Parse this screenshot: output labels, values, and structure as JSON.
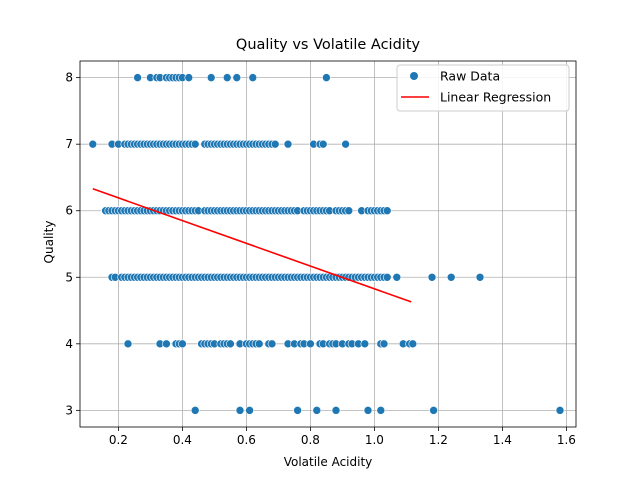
{
  "chart_data": {
    "type": "scatter",
    "title": "Quality vs Volatile Acidity",
    "xlabel": "Volatile Acidity",
    "ylabel": "Quality",
    "xlim": [
      0.08,
      1.63
    ],
    "ylim": [
      2.75,
      8.25
    ],
    "xticks": [
      0.2,
      0.4,
      0.6,
      0.8,
      1.0,
      1.2,
      1.4,
      1.6
    ],
    "xtick_labels": [
      "0.2",
      "0.4",
      "0.6",
      "0.8",
      "1.0",
      "1.2",
      "1.4",
      "1.6"
    ],
    "yticks": [
      3,
      4,
      5,
      6,
      7,
      8
    ],
    "ytick_labels": [
      "3",
      "4",
      "5",
      "6",
      "7",
      "8"
    ],
    "grid": true,
    "legend_position": "top-right",
    "colors": {
      "scatter": "#1f77b4",
      "regression": "#ff0000"
    },
    "series": [
      {
        "name": "Raw Data",
        "kind": "scatter",
        "points": [
          [
            0.26,
            8
          ],
          [
            0.3,
            8
          ],
          [
            0.32,
            8
          ],
          [
            0.33,
            8
          ],
          [
            0.35,
            8
          ],
          [
            0.36,
            8
          ],
          [
            0.37,
            8
          ],
          [
            0.38,
            8
          ],
          [
            0.39,
            8
          ],
          [
            0.4,
            8
          ],
          [
            0.42,
            8
          ],
          [
            0.49,
            8
          ],
          [
            0.54,
            8
          ],
          [
            0.57,
            8
          ],
          [
            0.62,
            8
          ],
          [
            0.85,
            8
          ],
          [
            0.12,
            7
          ],
          [
            0.18,
            7
          ],
          [
            0.2,
            7
          ],
          [
            0.22,
            7
          ],
          [
            0.23,
            7
          ],
          [
            0.24,
            7
          ],
          [
            0.25,
            7
          ],
          [
            0.26,
            7
          ],
          [
            0.27,
            7
          ],
          [
            0.28,
            7
          ],
          [
            0.29,
            7
          ],
          [
            0.3,
            7
          ],
          [
            0.31,
            7
          ],
          [
            0.32,
            7
          ],
          [
            0.33,
            7
          ],
          [
            0.34,
            7
          ],
          [
            0.35,
            7
          ],
          [
            0.36,
            7
          ],
          [
            0.37,
            7
          ],
          [
            0.38,
            7
          ],
          [
            0.39,
            7
          ],
          [
            0.4,
            7
          ],
          [
            0.41,
            7
          ],
          [
            0.42,
            7
          ],
          [
            0.43,
            7
          ],
          [
            0.44,
            7
          ],
          [
            0.47,
            7
          ],
          [
            0.48,
            7
          ],
          [
            0.49,
            7
          ],
          [
            0.5,
            7
          ],
          [
            0.51,
            7
          ],
          [
            0.52,
            7
          ],
          [
            0.53,
            7
          ],
          [
            0.54,
            7
          ],
          [
            0.55,
            7
          ],
          [
            0.56,
            7
          ],
          [
            0.57,
            7
          ],
          [
            0.58,
            7
          ],
          [
            0.59,
            7
          ],
          [
            0.6,
            7
          ],
          [
            0.61,
            7
          ],
          [
            0.62,
            7
          ],
          [
            0.63,
            7
          ],
          [
            0.64,
            7
          ],
          [
            0.65,
            7
          ],
          [
            0.66,
            7
          ],
          [
            0.67,
            7
          ],
          [
            0.68,
            7
          ],
          [
            0.69,
            7
          ],
          [
            0.73,
            7
          ],
          [
            0.81,
            7
          ],
          [
            0.83,
            7
          ],
          [
            0.84,
            7
          ],
          [
            0.91,
            7
          ],
          [
            0.16,
            6
          ],
          [
            0.17,
            6
          ],
          [
            0.18,
            6
          ],
          [
            0.19,
            6
          ],
          [
            0.2,
            6
          ],
          [
            0.21,
            6
          ],
          [
            0.22,
            6
          ],
          [
            0.23,
            6
          ],
          [
            0.24,
            6
          ],
          [
            0.25,
            6
          ],
          [
            0.26,
            6
          ],
          [
            0.27,
            6
          ],
          [
            0.28,
            6
          ],
          [
            0.29,
            6
          ],
          [
            0.3,
            6
          ],
          [
            0.31,
            6
          ],
          [
            0.32,
            6
          ],
          [
            0.33,
            6
          ],
          [
            0.34,
            6
          ],
          [
            0.35,
            6
          ],
          [
            0.36,
            6
          ],
          [
            0.37,
            6
          ],
          [
            0.38,
            6
          ],
          [
            0.39,
            6
          ],
          [
            0.4,
            6
          ],
          [
            0.41,
            6
          ],
          [
            0.42,
            6
          ],
          [
            0.43,
            6
          ],
          [
            0.44,
            6
          ],
          [
            0.45,
            6
          ],
          [
            0.47,
            6
          ],
          [
            0.48,
            6
          ],
          [
            0.49,
            6
          ],
          [
            0.5,
            6
          ],
          [
            0.51,
            6
          ],
          [
            0.52,
            6
          ],
          [
            0.53,
            6
          ],
          [
            0.54,
            6
          ],
          [
            0.55,
            6
          ],
          [
            0.56,
            6
          ],
          [
            0.57,
            6
          ],
          [
            0.58,
            6
          ],
          [
            0.59,
            6
          ],
          [
            0.6,
            6
          ],
          [
            0.61,
            6
          ],
          [
            0.62,
            6
          ],
          [
            0.63,
            6
          ],
          [
            0.64,
            6
          ],
          [
            0.65,
            6
          ],
          [
            0.66,
            6
          ],
          [
            0.67,
            6
          ],
          [
            0.68,
            6
          ],
          [
            0.69,
            6
          ],
          [
            0.7,
            6
          ],
          [
            0.71,
            6
          ],
          [
            0.72,
            6
          ],
          [
            0.73,
            6
          ],
          [
            0.74,
            6
          ],
          [
            0.75,
            6
          ],
          [
            0.76,
            6
          ],
          [
            0.78,
            6
          ],
          [
            0.79,
            6
          ],
          [
            0.8,
            6
          ],
          [
            0.81,
            6
          ],
          [
            0.82,
            6
          ],
          [
            0.83,
            6
          ],
          [
            0.84,
            6
          ],
          [
            0.85,
            6
          ],
          [
            0.86,
            6
          ],
          [
            0.88,
            6
          ],
          [
            0.89,
            6
          ],
          [
            0.9,
            6
          ],
          [
            0.91,
            6
          ],
          [
            0.92,
            6
          ],
          [
            0.96,
            6
          ],
          [
            0.98,
            6
          ],
          [
            0.99,
            6
          ],
          [
            1.0,
            6
          ],
          [
            1.01,
            6
          ],
          [
            1.02,
            6
          ],
          [
            1.03,
            6
          ],
          [
            1.04,
            6
          ],
          [
            0.18,
            5
          ],
          [
            0.19,
            5
          ],
          [
            0.21,
            5
          ],
          [
            0.22,
            5
          ],
          [
            0.23,
            5
          ],
          [
            0.24,
            5
          ],
          [
            0.25,
            5
          ],
          [
            0.26,
            5
          ],
          [
            0.27,
            5
          ],
          [
            0.28,
            5
          ],
          [
            0.29,
            5
          ],
          [
            0.3,
            5
          ],
          [
            0.31,
            5
          ],
          [
            0.32,
            5
          ],
          [
            0.33,
            5
          ],
          [
            0.34,
            5
          ],
          [
            0.35,
            5
          ],
          [
            0.36,
            5
          ],
          [
            0.37,
            5
          ],
          [
            0.38,
            5
          ],
          [
            0.39,
            5
          ],
          [
            0.4,
            5
          ],
          [
            0.41,
            5
          ],
          [
            0.42,
            5
          ],
          [
            0.43,
            5
          ],
          [
            0.44,
            5
          ],
          [
            0.45,
            5
          ],
          [
            0.46,
            5
          ],
          [
            0.47,
            5
          ],
          [
            0.48,
            5
          ],
          [
            0.49,
            5
          ],
          [
            0.5,
            5
          ],
          [
            0.51,
            5
          ],
          [
            0.52,
            5
          ],
          [
            0.53,
            5
          ],
          [
            0.54,
            5
          ],
          [
            0.55,
            5
          ],
          [
            0.56,
            5
          ],
          [
            0.57,
            5
          ],
          [
            0.58,
            5
          ],
          [
            0.59,
            5
          ],
          [
            0.6,
            5
          ],
          [
            0.61,
            5
          ],
          [
            0.62,
            5
          ],
          [
            0.63,
            5
          ],
          [
            0.64,
            5
          ],
          [
            0.65,
            5
          ],
          [
            0.66,
            5
          ],
          [
            0.67,
            5
          ],
          [
            0.68,
            5
          ],
          [
            0.69,
            5
          ],
          [
            0.7,
            5
          ],
          [
            0.71,
            5
          ],
          [
            0.72,
            5
          ],
          [
            0.73,
            5
          ],
          [
            0.74,
            5
          ],
          [
            0.75,
            5
          ],
          [
            0.76,
            5
          ],
          [
            0.77,
            5
          ],
          [
            0.78,
            5
          ],
          [
            0.79,
            5
          ],
          [
            0.8,
            5
          ],
          [
            0.81,
            5
          ],
          [
            0.82,
            5
          ],
          [
            0.83,
            5
          ],
          [
            0.84,
            5
          ],
          [
            0.85,
            5
          ],
          [
            0.86,
            5
          ],
          [
            0.87,
            5
          ],
          [
            0.88,
            5
          ],
          [
            0.89,
            5
          ],
          [
            0.9,
            5
          ],
          [
            0.91,
            5
          ],
          [
            0.92,
            5
          ],
          [
            0.93,
            5
          ],
          [
            0.94,
            5
          ],
          [
            0.95,
            5
          ],
          [
            0.96,
            5
          ],
          [
            0.97,
            5
          ],
          [
            0.98,
            5
          ],
          [
            0.99,
            5
          ],
          [
            1.0,
            5
          ],
          [
            1.01,
            5
          ],
          [
            1.02,
            5
          ],
          [
            1.03,
            5
          ],
          [
            1.04,
            5
          ],
          [
            1.07,
            5
          ],
          [
            1.18,
            5
          ],
          [
            1.24,
            5
          ],
          [
            1.33,
            5
          ],
          [
            0.23,
            4
          ],
          [
            0.33,
            4
          ],
          [
            0.35,
            4
          ],
          [
            0.38,
            4
          ],
          [
            0.39,
            4
          ],
          [
            0.4,
            4
          ],
          [
            0.46,
            4
          ],
          [
            0.47,
            4
          ],
          [
            0.48,
            4
          ],
          [
            0.49,
            4
          ],
          [
            0.5,
            4
          ],
          [
            0.52,
            4
          ],
          [
            0.53,
            4
          ],
          [
            0.54,
            4
          ],
          [
            0.55,
            4
          ],
          [
            0.58,
            4
          ],
          [
            0.6,
            4
          ],
          [
            0.61,
            4
          ],
          [
            0.62,
            4
          ],
          [
            0.63,
            4
          ],
          [
            0.64,
            4
          ],
          [
            0.67,
            4
          ],
          [
            0.68,
            4
          ],
          [
            0.73,
            4
          ],
          [
            0.75,
            4
          ],
          [
            0.77,
            4
          ],
          [
            0.78,
            4
          ],
          [
            0.8,
            4
          ],
          [
            0.83,
            4
          ],
          [
            0.84,
            4
          ],
          [
            0.86,
            4
          ],
          [
            0.87,
            4
          ],
          [
            0.88,
            4
          ],
          [
            0.9,
            4
          ],
          [
            0.92,
            4
          ],
          [
            0.93,
            4
          ],
          [
            0.95,
            4
          ],
          [
            0.97,
            4
          ],
          [
            1.02,
            4
          ],
          [
            1.03,
            4
          ],
          [
            1.09,
            4
          ],
          [
            1.11,
            4
          ],
          [
            1.12,
            4
          ],
          [
            0.44,
            3
          ],
          [
            0.58,
            3
          ],
          [
            0.61,
            3
          ],
          [
            0.76,
            3
          ],
          [
            0.82,
            3
          ],
          [
            0.88,
            3
          ],
          [
            0.98,
            3
          ],
          [
            1.02,
            3
          ],
          [
            1.185,
            3
          ],
          [
            1.58,
            3
          ]
        ]
      },
      {
        "name": "Linear Regression",
        "kind": "line",
        "points": [
          [
            0.12,
            6.33
          ],
          [
            1.115,
            4.63
          ]
        ]
      }
    ]
  }
}
